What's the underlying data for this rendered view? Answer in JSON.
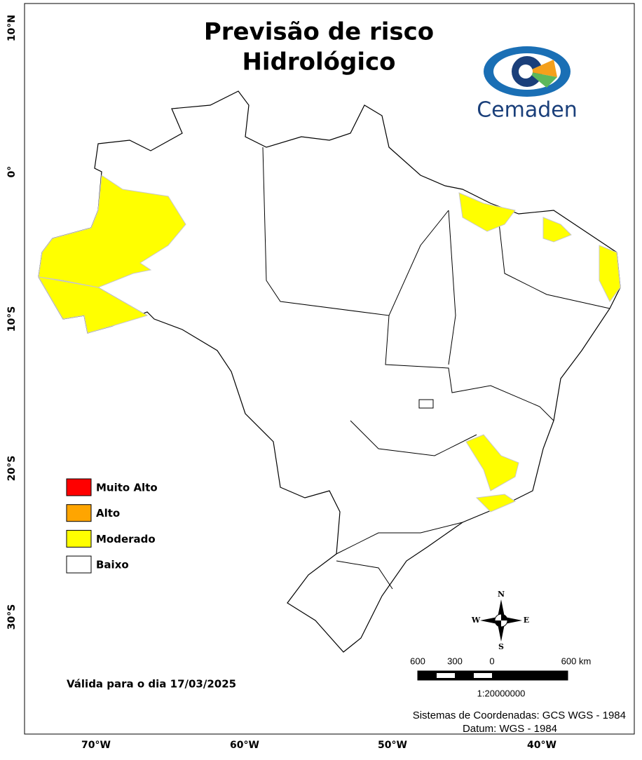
{
  "header": {
    "title": [
      "Previsão de risco",
      "Hidrológico"
    ],
    "logo": "Cemaden"
  },
  "legend": [
    {
      "label": "Muito Alto",
      "color": "#ff0000"
    },
    {
      "label": "Alto",
      "color": "#ffa500"
    },
    {
      "label": "Moderado",
      "color": "#ffff00"
    },
    {
      "label": "Baixo",
      "color": "#ffffff"
    }
  ],
  "valid_date": "Válida para o dia 17/03/2025",
  "lat_labels": [
    "10°N",
    "0°",
    "10°S",
    "20°S",
    "30°S"
  ],
  "lon_labels": [
    "70°W",
    "60°W",
    "50°W",
    "40°W"
  ],
  "compass": [
    "N",
    "S",
    "W",
    "E"
  ],
  "scale": {
    "labels": [
      "600",
      "300",
      "0",
      "600 km"
    ],
    "ratio": "1:20000000"
  },
  "crs": [
    "Sistemas de Coordenadas: GCS WGS - 1984",
    "Datum: WGS - 1984"
  ]
}
